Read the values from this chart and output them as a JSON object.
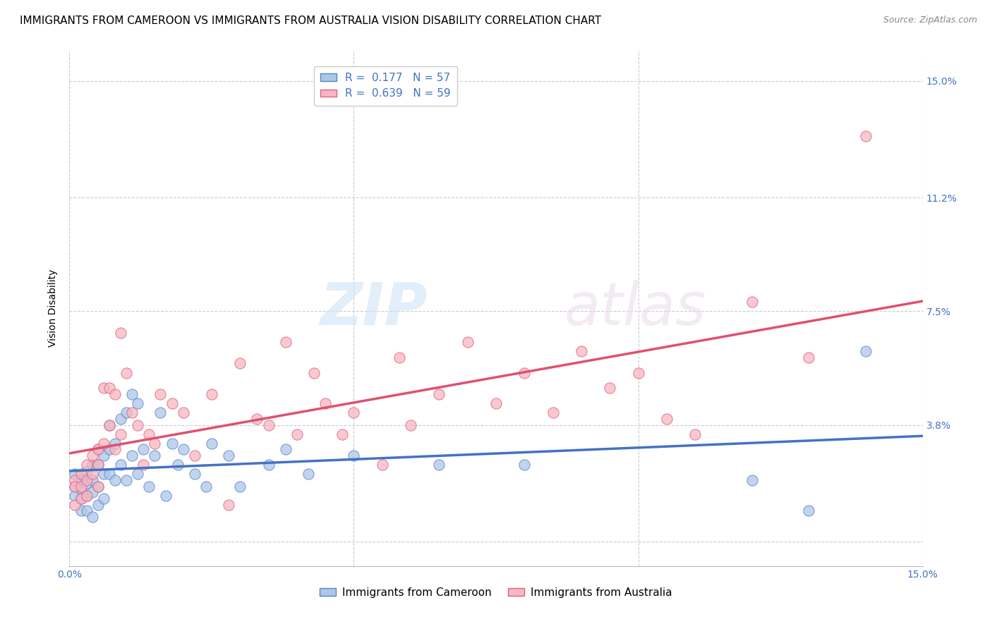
{
  "title": "IMMIGRANTS FROM CAMEROON VS IMMIGRANTS FROM AUSTRALIA VISION DISABILITY CORRELATION CHART",
  "source": "Source: ZipAtlas.com",
  "ylabel": "Vision Disability",
  "xlim": [
    0.0,
    0.15
  ],
  "ylim": [
    -0.008,
    0.16
  ],
  "xtick_values": [
    0.0,
    0.15
  ],
  "xtick_labels": [
    "0.0%",
    "15.0%"
  ],
  "ytick_values": [
    0.0,
    0.038,
    0.075,
    0.112,
    0.15
  ],
  "ytick_labels": [
    "",
    "3.8%",
    "7.5%",
    "11.2%",
    "15.0%"
  ],
  "grid_color": "#cccccc",
  "background_color": "#ffffff",
  "cameroon_fill": "#aec6e8",
  "australia_fill": "#f7b6c2",
  "cameroon_edge": "#5585c8",
  "australia_edge": "#e0607a",
  "cameroon_line_color": "#4472c4",
  "australia_line_color": "#e05070",
  "R_cameroon": 0.177,
  "N_cameroon": 57,
  "R_australia": 0.639,
  "N_australia": 59,
  "legend_label_cameroon": "Immigrants from Cameroon",
  "legend_label_australia": "Immigrants from Australia",
  "cameroon_x": [
    0.001,
    0.001,
    0.001,
    0.002,
    0.002,
    0.002,
    0.002,
    0.003,
    0.003,
    0.003,
    0.003,
    0.004,
    0.004,
    0.004,
    0.004,
    0.005,
    0.005,
    0.005,
    0.005,
    0.006,
    0.006,
    0.006,
    0.007,
    0.007,
    0.007,
    0.008,
    0.008,
    0.009,
    0.009,
    0.01,
    0.01,
    0.011,
    0.011,
    0.012,
    0.012,
    0.013,
    0.014,
    0.015,
    0.016,
    0.017,
    0.018,
    0.019,
    0.02,
    0.022,
    0.024,
    0.025,
    0.028,
    0.03,
    0.035,
    0.038,
    0.042,
    0.05,
    0.065,
    0.08,
    0.12,
    0.13,
    0.14
  ],
  "cameroon_y": [
    0.022,
    0.018,
    0.015,
    0.02,
    0.017,
    0.014,
    0.01,
    0.023,
    0.019,
    0.015,
    0.01,
    0.025,
    0.02,
    0.016,
    0.008,
    0.03,
    0.025,
    0.018,
    0.012,
    0.028,
    0.022,
    0.014,
    0.038,
    0.03,
    0.022,
    0.032,
    0.02,
    0.04,
    0.025,
    0.042,
    0.02,
    0.048,
    0.028,
    0.045,
    0.022,
    0.03,
    0.018,
    0.028,
    0.042,
    0.015,
    0.032,
    0.025,
    0.03,
    0.022,
    0.018,
    0.032,
    0.028,
    0.018,
    0.025,
    0.03,
    0.022,
    0.028,
    0.025,
    0.025,
    0.02,
    0.01,
    0.062
  ],
  "australia_x": [
    0.001,
    0.001,
    0.001,
    0.002,
    0.002,
    0.002,
    0.003,
    0.003,
    0.003,
    0.004,
    0.004,
    0.005,
    0.005,
    0.005,
    0.006,
    0.006,
    0.007,
    0.007,
    0.008,
    0.008,
    0.009,
    0.009,
    0.01,
    0.011,
    0.012,
    0.013,
    0.014,
    0.015,
    0.016,
    0.018,
    0.02,
    0.022,
    0.025,
    0.028,
    0.03,
    0.033,
    0.035,
    0.038,
    0.04,
    0.043,
    0.045,
    0.048,
    0.05,
    0.055,
    0.058,
    0.06,
    0.065,
    0.07,
    0.075,
    0.08,
    0.085,
    0.09,
    0.095,
    0.1,
    0.105,
    0.11,
    0.12,
    0.13,
    0.14
  ],
  "australia_y": [
    0.02,
    0.018,
    0.012,
    0.022,
    0.018,
    0.014,
    0.025,
    0.02,
    0.015,
    0.028,
    0.022,
    0.03,
    0.025,
    0.018,
    0.05,
    0.032,
    0.05,
    0.038,
    0.048,
    0.03,
    0.068,
    0.035,
    0.055,
    0.042,
    0.038,
    0.025,
    0.035,
    0.032,
    0.048,
    0.045,
    0.042,
    0.028,
    0.048,
    0.012,
    0.058,
    0.04,
    0.038,
    0.065,
    0.035,
    0.055,
    0.045,
    0.035,
    0.042,
    0.025,
    0.06,
    0.038,
    0.048,
    0.065,
    0.045,
    0.055,
    0.042,
    0.062,
    0.05,
    0.055,
    0.04,
    0.035,
    0.078,
    0.06,
    0.132
  ],
  "watermark_zip": "ZIP",
  "watermark_atlas": "atlas",
  "title_fontsize": 11,
  "axis_label_fontsize": 10,
  "tick_fontsize": 10,
  "legend_fontsize": 11,
  "source_fontsize": 9
}
